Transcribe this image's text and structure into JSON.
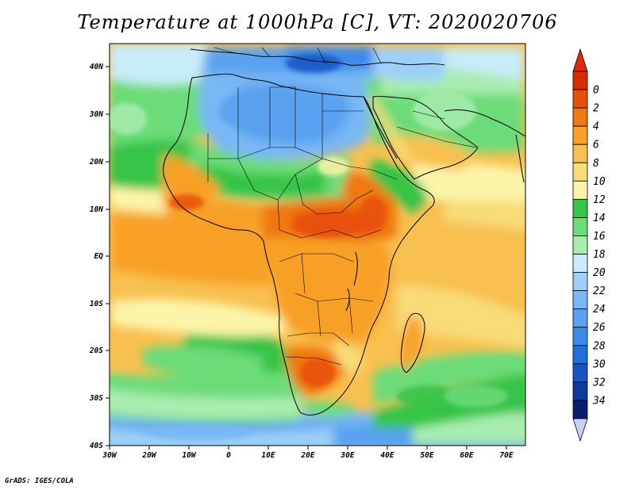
{
  "title": "Temperature at 1000hPa [C], VT: 2020020706",
  "credit": "GrADS: IGES/COLA",
  "map": {
    "region": "Africa, Arabian Peninsula and western Indian Ocean",
    "projection": "latitude-longitude",
    "lon_range": [
      -30,
      75
    ],
    "lat_range": [
      -40,
      45
    ],
    "variable": "Temperature at 1000hPa",
    "units": "C",
    "valid_time": "2020020706",
    "x_ticks": [
      "30W",
      "20W",
      "10W",
      "0",
      "10E",
      "20E",
      "30E",
      "40E",
      "50E",
      "60E",
      "70E"
    ],
    "y_ticks": [
      "40N",
      "30N",
      "20N",
      "10N",
      "EQ",
      "10S",
      "20S",
      "30S",
      "40S"
    ]
  },
  "colorbar": {
    "labels": [
      "0",
      "2",
      "4",
      "6",
      "8",
      "10",
      "12",
      "14",
      "16",
      "18",
      "20",
      "22",
      "24",
      "26",
      "28",
      "30",
      "32",
      "34"
    ],
    "colors": [
      "#0a1a6e",
      "#0e3aa0",
      "#1556c4",
      "#2070dc",
      "#3c8ae8",
      "#5aa2f0",
      "#78b8f4",
      "#9cd0f8",
      "#c8ecfa",
      "#a8ecb0",
      "#6cdc78",
      "#34c446",
      "#fcf4a8",
      "#f8dc78",
      "#f8c050",
      "#f8a028",
      "#f07810",
      "#e85008",
      "#d82c00"
    ],
    "under_color": "#c8d0f8",
    "over_color": "#e02a10"
  }
}
